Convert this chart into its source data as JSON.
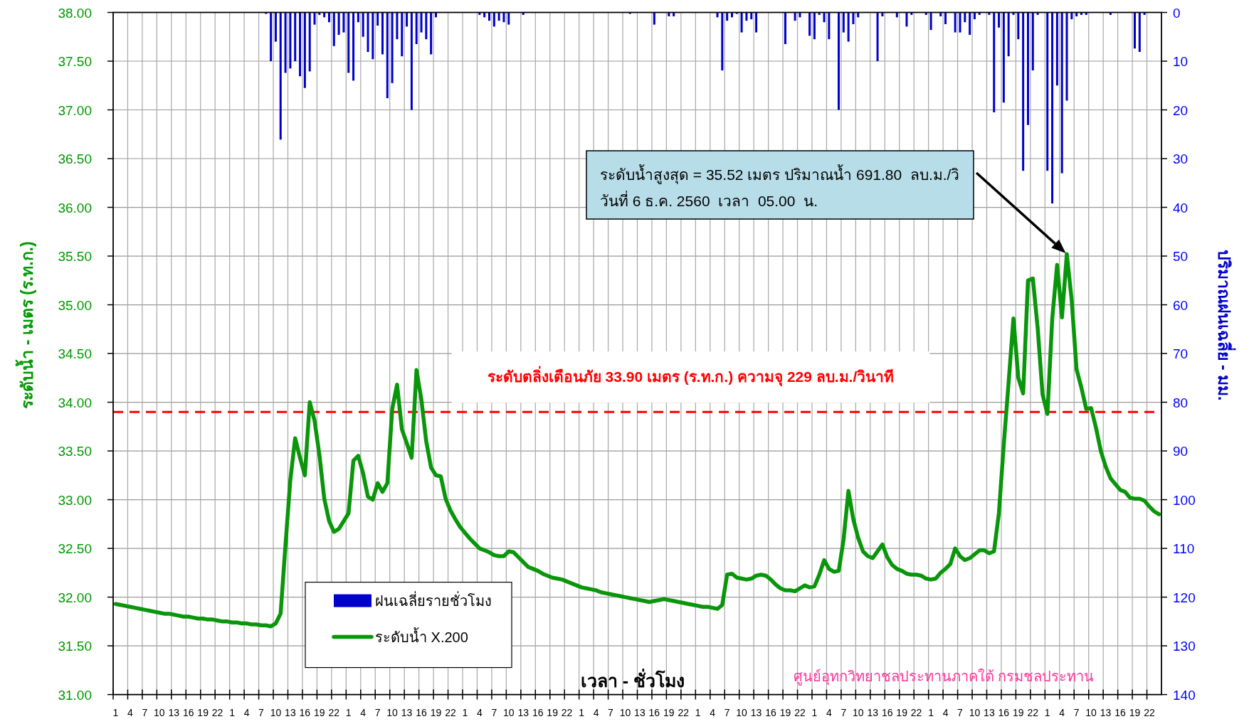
{
  "chart_data": {
    "type": "line",
    "xlabel": "เวลา - ชั่วโมง",
    "ylabel": "ระดับน้ำ - เมตร (ร.ท.ก.)",
    "y2label": "ปริมาณฝนเฉลี่ย - มม.",
    "categories": [
      "1",
      null,
      null,
      "4",
      null,
      null,
      "7",
      null,
      null,
      "10",
      null,
      null,
      "13",
      null,
      null,
      "16",
      null,
      null,
      "19",
      null,
      null,
      "22",
      null,
      null,
      "1",
      null,
      null,
      "4",
      null,
      null,
      "7",
      null,
      null,
      "10",
      null,
      null,
      "13",
      null,
      null,
      "16",
      null,
      null,
      "19",
      null,
      null,
      "22",
      null,
      null,
      "1",
      null,
      null,
      "4",
      null,
      null,
      "7",
      null,
      null,
      "10",
      null,
      null,
      "13",
      null,
      null,
      "16",
      null,
      null,
      "19",
      null,
      null,
      "22",
      null,
      null,
      "1",
      null,
      null,
      "4",
      null,
      null,
      "7",
      null,
      null,
      "10",
      null,
      null,
      "13",
      null,
      null,
      "16",
      null,
      null,
      "19",
      null,
      null,
      "22",
      null,
      null,
      "1",
      null,
      null,
      "4",
      null,
      null,
      "7",
      null,
      null,
      "10",
      null,
      null,
      "13",
      null,
      null,
      "16",
      null,
      null,
      "19",
      null,
      null,
      "22",
      null,
      null,
      "1",
      null,
      null,
      "4",
      null,
      null,
      "7",
      null,
      null,
      "10",
      null,
      null,
      "13",
      null,
      null,
      "16",
      null,
      null,
      "19",
      null,
      null,
      "22",
      null,
      null,
      "1",
      null,
      null,
      "4",
      null,
      null,
      "7",
      null,
      null,
      "10",
      null,
      null,
      "13",
      null,
      null,
      "16",
      null,
      null,
      "19",
      null,
      null,
      "22",
      null,
      null,
      "1",
      null,
      null,
      "4",
      null,
      null,
      "7",
      null,
      null,
      "10",
      null,
      null,
      "13",
      null,
      null,
      "16",
      null,
      null,
      "19",
      null,
      null,
      "22",
      null,
      null,
      "1",
      null,
      null,
      "4",
      null,
      null,
      "7",
      null,
      null,
      "10",
      null,
      null,
      "13",
      null,
      null,
      "16",
      null,
      null,
      "19",
      null,
      null,
      "22",
      null,
      null
    ],
    "series": [
      {
        "name": "ฝนเฉลี่ยรายชั่วโมง",
        "type": "bar",
        "axis": "y2",
        "color": "#0000cc",
        "values": [
          0,
          0,
          0,
          0,
          0,
          0,
          0,
          0,
          0,
          0,
          0,
          0,
          0,
          0,
          0,
          0,
          0,
          0,
          0,
          0,
          0,
          0,
          0,
          0,
          0,
          0,
          0,
          0,
          0,
          0,
          0,
          0.3,
          10,
          6,
          26.1,
          12.4,
          11.5,
          10,
          13.1,
          15.5,
          12.1,
          2.5,
          0.5,
          1,
          2,
          6.9,
          4.6,
          4.1,
          12.4,
          14,
          2,
          5,
          8.1,
          9.6,
          2.7,
          8.6,
          17.6,
          14.5,
          5.5,
          9,
          2.9,
          20,
          6.5,
          4.1,
          5.5,
          8.6,
          1,
          0,
          0,
          0,
          0,
          0,
          0,
          0,
          0,
          0.5,
          1,
          1.7,
          2.9,
          1.7,
          2,
          2.5,
          0,
          0,
          0.5,
          0,
          0,
          0,
          0,
          0,
          0,
          0,
          0,
          0,
          0,
          0,
          0,
          0,
          0,
          0,
          0,
          0,
          0,
          0,
          0,
          0,
          0.3,
          0,
          0,
          0,
          0,
          2.5,
          0,
          0,
          0.8,
          0.8,
          0,
          0,
          0,
          0,
          0,
          0,
          0,
          0,
          1,
          11.9,
          1.7,
          1,
          0.3,
          4.1,
          1.7,
          1.4,
          4.1,
          0,
          0,
          0,
          0,
          0,
          6.5,
          0,
          1.7,
          1,
          0,
          4.8,
          5.5,
          0.5,
          2,
          5.5,
          0,
          20,
          4.1,
          6,
          2.4,
          1,
          0,
          0,
          0,
          10,
          0.8,
          0,
          0,
          1,
          0,
          2.9,
          0.5,
          0,
          0,
          0.5,
          3.6,
          0,
          0.8,
          2.4,
          0,
          4.1,
          4.1,
          2,
          4.6,
          1.4,
          0.5,
          0,
          0.5,
          20.5,
          3.1,
          18.5,
          9,
          0.5,
          5.5,
          32.5,
          23.1,
          11.9,
          0.5,
          0,
          32.5,
          39.2,
          15,
          33,
          18.1,
          1.4,
          0.8,
          0.5,
          0.5,
          0,
          0,
          0,
          0,
          0.5,
          0,
          0,
          0,
          0,
          7.4,
          8.1,
          0.5,
          0,
          0,
          0
        ]
      },
      {
        "name": "ระดับน้ำ X.200",
        "color": "#0a960a",
        "values": [
          31.93,
          31.92,
          31.91,
          31.9,
          31.89,
          31.88,
          31.87,
          31.86,
          31.85,
          31.84,
          31.83,
          31.83,
          31.82,
          31.81,
          31.8,
          31.8,
          31.79,
          31.78,
          31.78,
          31.77,
          31.77,
          31.76,
          31.75,
          31.75,
          31.74,
          31.74,
          31.73,
          31.73,
          31.72,
          31.72,
          31.71,
          31.71,
          31.7,
          31.73,
          31.83,
          32.53,
          33.2,
          33.63,
          33.43,
          33.25,
          34.0,
          33.81,
          33.46,
          33.01,
          32.78,
          32.67,
          32.7,
          32.78,
          32.86,
          33.4,
          33.45,
          33.27,
          33.03,
          33.0,
          33.17,
          33.08,
          33.17,
          33.93,
          34.18,
          33.72,
          33.58,
          33.43,
          34.33,
          34.03,
          33.6,
          33.33,
          33.25,
          33.24,
          33.01,
          32.89,
          32.8,
          32.72,
          32.66,
          32.6,
          32.55,
          32.5,
          32.48,
          32.46,
          32.43,
          32.42,
          32.42,
          32.47,
          32.46,
          32.41,
          32.36,
          32.31,
          32.29,
          32.27,
          32.24,
          32.22,
          32.2,
          32.19,
          32.18,
          32.16,
          32.14,
          32.12,
          32.1,
          32.09,
          32.08,
          32.07,
          32.05,
          32.04,
          32.03,
          32.02,
          32.01,
          32.0,
          31.99,
          31.98,
          31.97,
          31.96,
          31.95,
          31.96,
          31.97,
          31.98,
          31.97,
          31.96,
          31.95,
          31.94,
          31.93,
          31.92,
          31.91,
          31.9,
          31.9,
          31.89,
          31.88,
          31.92,
          32.23,
          32.24,
          32.2,
          32.19,
          32.18,
          32.19,
          32.22,
          32.23,
          32.22,
          32.18,
          32.13,
          32.09,
          32.07,
          32.07,
          32.06,
          32.09,
          32.12,
          32.1,
          32.11,
          32.23,
          32.38,
          32.29,
          32.26,
          32.27,
          32.59,
          33.09,
          32.8,
          32.61,
          32.47,
          32.42,
          32.4,
          32.47,
          32.54,
          32.41,
          32.33,
          32.29,
          32.27,
          32.24,
          32.23,
          32.23,
          32.22,
          32.19,
          32.18,
          32.19,
          32.25,
          32.29,
          32.34,
          32.5,
          32.42,
          32.38,
          32.4,
          32.44,
          32.48,
          32.48,
          32.45,
          32.47,
          32.86,
          33.56,
          34.2,
          34.86,
          34.25,
          34.09,
          35.25,
          35.27,
          34.76,
          34.08,
          33.88,
          34.86,
          35.41,
          34.87,
          35.52,
          35.05,
          34.34,
          34.15,
          33.93,
          33.94,
          33.74,
          33.5,
          33.34,
          33.22,
          33.16,
          33.1,
          33.08,
          33.02,
          33.01,
          33.01,
          32.99,
          32.93,
          32.88,
          32.85
        ]
      }
    ],
    "ylim": [
      31,
      38
    ],
    "yticks": [
      {
        "value": 31,
        "label": "31.00"
      },
      {
        "value": 31.5,
        "label": "31.50"
      },
      {
        "value": 32,
        "label": "32.00"
      },
      {
        "value": 32.5,
        "label": "32.50"
      },
      {
        "value": 33,
        "label": "33.00"
      },
      {
        "value": 33.5,
        "label": "33.50"
      },
      {
        "value": 34,
        "label": "34.00"
      },
      {
        "value": 34.5,
        "label": "34.50"
      },
      {
        "value": 35,
        "label": "35.00"
      },
      {
        "value": 35.5,
        "label": "35.50"
      },
      {
        "value": 36,
        "label": "36.00"
      },
      {
        "value": 36.5,
        "label": "36.50"
      },
      {
        "value": 37,
        "label": "37.00"
      },
      {
        "value": 37.5,
        "label": "37.50"
      },
      {
        "value": 38,
        "label": "38.00"
      }
    ],
    "y2lim": [
      140,
      0
    ],
    "y2ticks": [
      0,
      10,
      20,
      30,
      40,
      50,
      60,
      70,
      80,
      90,
      100,
      110,
      120,
      130,
      140
    ],
    "ref_lines": [
      {
        "axis": "y",
        "value": 33.9,
        "label": "ระดับตลิ่งเตือนภัย 33.90 เมตร (ร.ท.ก.) ความจุ 229 ลบ.ม./วินาที",
        "color": "#ff0000",
        "line_style": "dashed"
      }
    ],
    "annotations": [
      "ระดับน้ำสูงสุด = 35.52 เมตร ปริมาณน้ำ 691.80  ลบ.ม./วิ\nวันที่ 6 ธ.ค. 2560  เวลา  05.00  น.",
      "ศูนย์อุทกวิทยาชลประทานภาคใต้ กรมชลประทาน"
    ],
    "grid": true,
    "legend": "bottom left"
  }
}
